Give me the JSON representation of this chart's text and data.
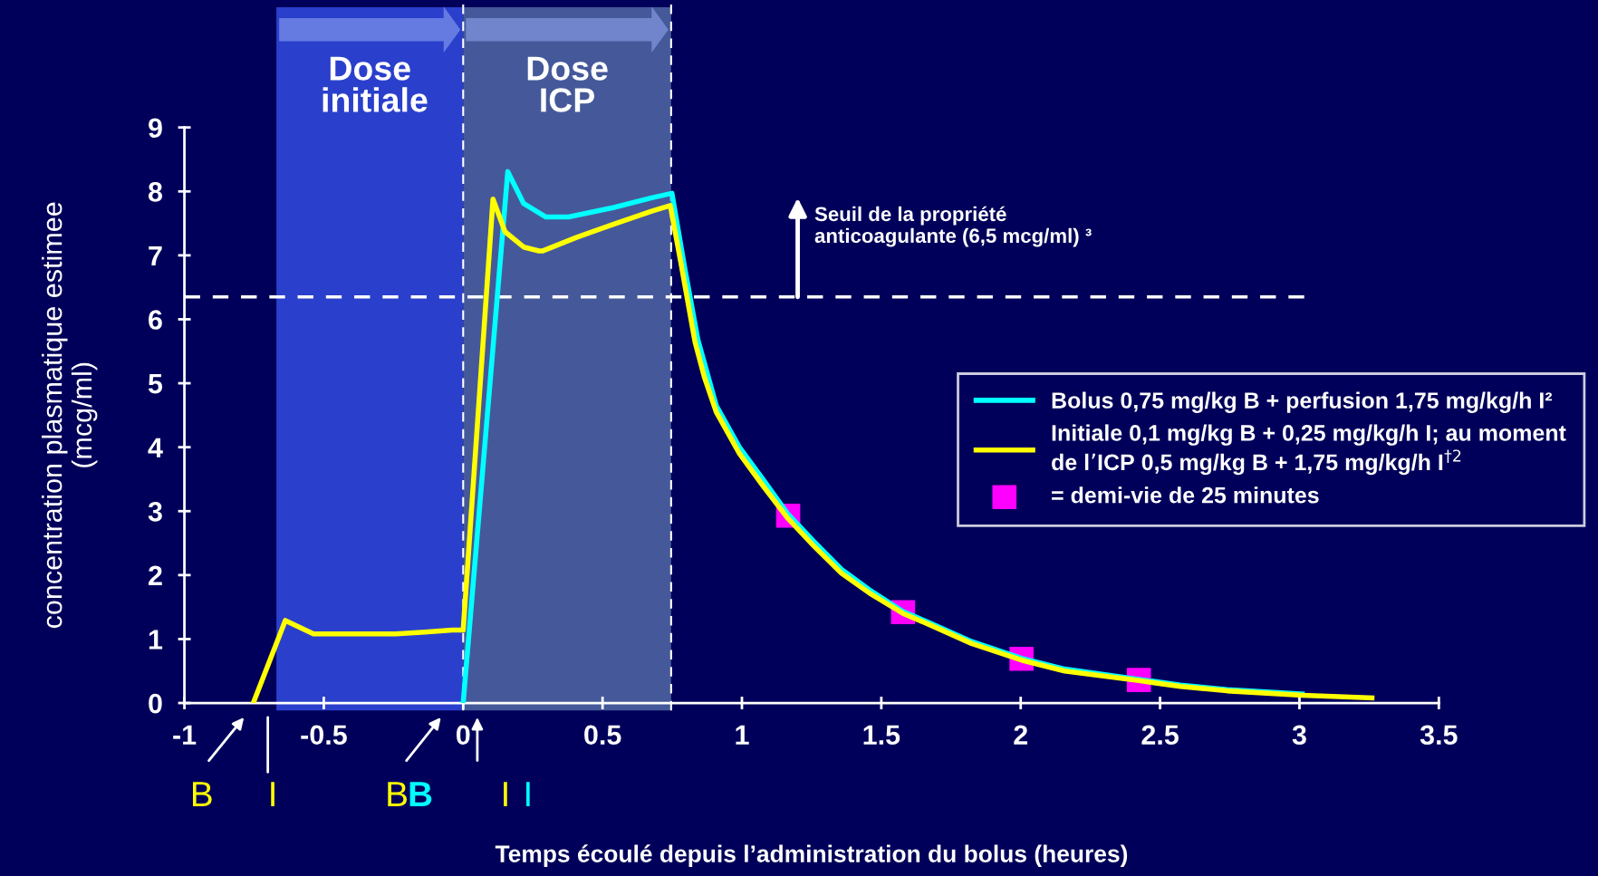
{
  "chart_data": {
    "type": "line",
    "xlabel": "Temps écoulé depuis l’administration du bolus (heures)",
    "ylabel": "concentration plasmatique estimee\n(mcg/ml)",
    "xlim": [
      -1,
      3.5
    ],
    "ylim": [
      0,
      9
    ],
    "xticks": [
      -1,
      -0.5,
      0,
      0.5,
      1,
      1.5,
      2,
      2.5,
      3,
      3.5
    ],
    "yticks": [
      0,
      1,
      2,
      3,
      4,
      5,
      6,
      7,
      8,
      9
    ],
    "grid": false,
    "legend": "right",
    "marker": "none",
    "line_style": "solid",
    "series": [
      {
        "name": "Bolus 0,75 mg/kg B + perfusion 1,75 mg/kg/h I²",
        "color": "#00ffff",
        "x": [
          0.0,
          0.16,
          0.217,
          0.297,
          0.378,
          0.541,
          0.676,
          0.749,
          0.792,
          0.842,
          0.908,
          0.991,
          1.075,
          1.166,
          1.257,
          1.357,
          1.457,
          1.578,
          1.675,
          1.824,
          2.003,
          2.158,
          2.424,
          2.573,
          2.74,
          3.01
        ],
        "values": [
          0,
          8.31,
          7.81,
          7.6,
          7.6,
          7.75,
          7.9,
          7.97,
          6.87,
          5.68,
          4.65,
          4.0,
          3.5,
          2.95,
          2.53,
          2.09,
          1.77,
          1.43,
          1.25,
          0.96,
          0.7,
          0.53,
          0.37,
          0.28,
          0.21,
          0.14
        ]
      },
      {
        "name": "Initiale 0,1 mg/kg B + 0,25 mg/kg/h I; au moment\nde l’ICP 0,5 mg/kg B + 1,75 mg/kg/h I$^{†2}$",
        "color": "#ffff00",
        "x": [
          -0.753,
          -0.638,
          -0.537,
          -0.242,
          -0.137,
          -0.039,
          0.0,
          0.107,
          0.15,
          0.217,
          0.272,
          0.286,
          0.406,
          0.541,
          0.676,
          0.743,
          0.784,
          0.832,
          0.865,
          0.908,
          0.991,
          1.075,
          1.166,
          1.257,
          1.357,
          1.457,
          1.578,
          1.675,
          1.824,
          2.003,
          2.158,
          2.424,
          2.573,
          2.74,
          3.01,
          3.26
        ],
        "values": [
          0,
          1.29,
          1.08,
          1.08,
          1.11,
          1.14,
          1.14,
          7.88,
          7.37,
          7.13,
          7.07,
          7.07,
          7.28,
          7.49,
          7.69,
          7.78,
          6.81,
          5.64,
          5.1,
          4.55,
          3.9,
          3.4,
          2.88,
          2.46,
          2.03,
          1.72,
          1.4,
          1.22,
          0.93,
          0.67,
          0.5,
          0.35,
          0.26,
          0.19,
          0.12,
          0.08
        ]
      },
      {
        "name": "= demi-vie de 25 minutes",
        "type": "scatter",
        "color": "#ff00ff",
        "marker": "square",
        "x": [
          1.166,
          1.578,
          2.003,
          2.424
        ],
        "values": [
          2.93,
          1.42,
          0.69,
          0.36
        ]
      }
    ],
    "ref_lines": [
      {
        "axis": "y",
        "value": 6.35,
        "label": "Seuil de la propriété\nanticoagulante (6,5 mcg/ml) ³",
        "color": "#ffffff",
        "line_style": "dashed"
      },
      {
        "axis": "x",
        "value": 0,
        "color": "#ffffff",
        "line_style": "dashed"
      },
      {
        "axis": "x",
        "value": 0.746,
        "color": "#ffffff",
        "line_style": "dashed"
      }
    ],
    "bands": [
      {
        "axis": "x",
        "from": -0.67,
        "to": 0,
        "label": "Dose\n initiale",
        "color": "#2a40cc"
      },
      {
        "axis": "x",
        "from": 0,
        "to": 0.746,
        "label": "Dose\nICP",
        "color": "#45599a"
      }
    ],
    "annotations": [
      "B",
      "I",
      "BB",
      "II"
    ]
  }
}
